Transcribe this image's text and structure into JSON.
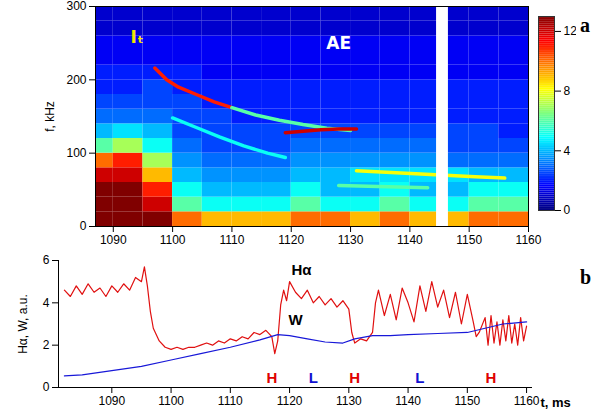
{
  "chart_data": [
    {
      "panel_label": "a",
      "type": "heatmap",
      "xlim": [
        1087,
        1160
      ],
      "xticks": [
        1090,
        1100,
        1110,
        1120,
        1130,
        1140,
        1150,
        1160
      ],
      "ylim": [
        0,
        300
      ],
      "yticks": [
        0,
        100,
        200,
        300
      ],
      "ylabel": "f, kHz",
      "t_edges": [
        1085,
        1090,
        1095,
        1100,
        1105,
        1110,
        1115,
        1120,
        1125,
        1130,
        1135,
        1140,
        1145,
        1150,
        1155,
        1160
      ],
      "f_edges": [
        0,
        20,
        40,
        60,
        80,
        100,
        120,
        140,
        160,
        180,
        200,
        220,
        240,
        260,
        280,
        300
      ],
      "power": [
        [
          13,
          13,
          13,
          10,
          9,
          9,
          9,
          10,
          10,
          9,
          10,
          9,
          9,
          10,
          10
        ],
        [
          13,
          13,
          12,
          6,
          5,
          5,
          5,
          6,
          5,
          5,
          6,
          5,
          5,
          6,
          6
        ],
        [
          13,
          13,
          11,
          5,
          4,
          4,
          4,
          5,
          4,
          4,
          5,
          4,
          4,
          5,
          5
        ],
        [
          12,
          12,
          9,
          4,
          3.5,
          3.5,
          3.5,
          4,
          4,
          4.5,
          4.5,
          4.5,
          4.5,
          4,
          4
        ],
        [
          10,
          11,
          7,
          3.5,
          3,
          3,
          3,
          3.5,
          3.5,
          3.5,
          3.5,
          3.5,
          3,
          3,
          3
        ],
        [
          6,
          7,
          5,
          3,
          2.5,
          2.5,
          2.5,
          3,
          3,
          3,
          3,
          3,
          2.5,
          2.5,
          2.5
        ],
        [
          4,
          4.5,
          4,
          2.5,
          2.5,
          2.5,
          2.5,
          2.5,
          2.5,
          2.5,
          2.5,
          2.5,
          2.5,
          2.5,
          2
        ],
        [
          3,
          3,
          3,
          2.5,
          2.5,
          2,
          2,
          2,
          2,
          2,
          2,
          2,
          2,
          2,
          2
        ],
        [
          2.5,
          2.5,
          2.5,
          2.5,
          2,
          2,
          2,
          2,
          2,
          2,
          2,
          2,
          2,
          2,
          2
        ],
        [
          2,
          2,
          2.5,
          2,
          2,
          2,
          2,
          2,
          2,
          2,
          2,
          2,
          2,
          2,
          2
        ],
        [
          2,
          2,
          2,
          2,
          1.5,
          1.5,
          1.5,
          1.5,
          1.5,
          1.5,
          1.5,
          1.5,
          1.5,
          1.5,
          1.5
        ],
        [
          1.5,
          1.5,
          1.5,
          1.5,
          1.5,
          1.5,
          1.5,
          1.5,
          1.5,
          1.5,
          1.5,
          1.5,
          1.5,
          1.5,
          1.5
        ],
        [
          1.5,
          1.5,
          1.5,
          1.5,
          1.5,
          1.5,
          1.5,
          1.5,
          1.5,
          1.5,
          1.5,
          1.5,
          1.5,
          1.5,
          1.5
        ],
        [
          1,
          1,
          1,
          1,
          1,
          1,
          1,
          1,
          1,
          1,
          1,
          1,
          1,
          1,
          1
        ],
        [
          1,
          1,
          1,
          1,
          1,
          1,
          1,
          1,
          1,
          1,
          1,
          1,
          1,
          1,
          1
        ]
      ],
      "gap": [
        1144.5,
        1146.5
      ],
      "modes": [
        {
          "t": [
            1097,
            1099,
            1101,
            1104,
            1107,
            1110
          ],
          "f": [
            216,
            200,
            190,
            180,
            170,
            162
          ],
          "power": 11
        },
        {
          "t": [
            1110,
            1114,
            1118,
            1122,
            1126,
            1130
          ],
          "f": [
            162,
            152,
            145,
            139,
            134,
            131
          ],
          "power": 6
        },
        {
          "t": [
            1119,
            1122,
            1125,
            1128,
            1131
          ],
          "f": [
            128,
            130,
            132,
            133,
            133
          ],
          "power": 12
        },
        {
          "t": [
            1100,
            1104,
            1108,
            1112,
            1116,
            1119
          ],
          "f": [
            148,
            135,
            122,
            110,
            100,
            94
          ],
          "power": 5
        },
        {
          "t": [
            1131,
            1136,
            1141,
            1146,
            1151,
            1156
          ],
          "f": [
            76,
            74,
            72,
            70,
            68,
            66
          ],
          "power": 8
        },
        {
          "t": [
            1128,
            1133,
            1138,
            1143
          ],
          "f": [
            56,
            55,
            54,
            53
          ],
          "power": 6
        }
      ],
      "colorbar": {
        "range": [
          0,
          13
        ],
        "ticks": [
          0,
          4,
          8,
          12
        ]
      },
      "annotations": [
        {
          "text": "Iₜ",
          "x": 1094,
          "y": 258,
          "color": "#f0e400"
        },
        {
          "text": "AE",
          "x": 1128,
          "y": 250,
          "color": "#ffffff"
        }
      ]
    },
    {
      "panel_label": "b",
      "type": "line",
      "xlim": [
        1081,
        1161
      ],
      "xticks": [
        1090,
        1100,
        1110,
        1120,
        1130,
        1140,
        1150,
        1160
      ],
      "ylim": [
        0,
        6
      ],
      "yticks": [
        0,
        2,
        4,
        6
      ],
      "ylabel": "Hα, W, a.u.",
      "xlabel": "t, ms",
      "series": [
        {
          "name": "Hα",
          "color": "#e01010",
          "label_at": [
            1122,
            5.55
          ],
          "x": [
            1082,
            1083,
            1084,
            1085,
            1086,
            1087,
            1088,
            1089,
            1090,
            1091,
            1092,
            1093,
            1094,
            1095,
            1095.5,
            1096,
            1096.5,
            1097,
            1098,
            1099,
            1100,
            1101,
            1102,
            1103,
            1104,
            1105,
            1106,
            1107,
            1108,
            1109,
            1110,
            1111,
            1112,
            1113,
            1114,
            1115,
            1116,
            1117,
            1117.5,
            1118,
            1118.5,
            1119,
            1119.5,
            1120,
            1121,
            1122,
            1123,
            1124,
            1125,
            1126,
            1127,
            1128,
            1129,
            1130,
            1130.5,
            1131,
            1132,
            1133,
            1134,
            1134.5,
            1135,
            1136,
            1137,
            1138,
            1139,
            1140,
            1141,
            1142,
            1143,
            1144,
            1145,
            1146,
            1147,
            1148,
            1149,
            1150,
            1151,
            1151.5,
            1152,
            1153,
            1153.5,
            1154,
            1154.5,
            1155,
            1155.5,
            1156,
            1156.5,
            1157,
            1157.5,
            1158,
            1158.5,
            1159,
            1159.5,
            1160
          ],
          "values": [
            4.6,
            4.3,
            4.8,
            4.4,
            4.9,
            4.5,
            4.7,
            4.3,
            4.8,
            4.5,
            4.9,
            4.6,
            5.2,
            5.0,
            5.7,
            4.8,
            3.6,
            2.8,
            2.2,
            1.9,
            1.8,
            1.9,
            1.8,
            1.9,
            1.9,
            2.0,
            2.1,
            2.0,
            2.2,
            2.1,
            2.3,
            2.2,
            2.4,
            2.3,
            2.6,
            2.5,
            2.7,
            2.4,
            1.6,
            2.2,
            3.9,
            4.6,
            4.1,
            5.0,
            4.5,
            4.2,
            4.6,
            4.0,
            4.3,
            3.9,
            4.2,
            3.8,
            4.1,
            3.7,
            2.6,
            2.1,
            2.3,
            2.2,
            2.6,
            4.0,
            4.6,
            3.4,
            4.4,
            3.2,
            4.7,
            4.0,
            3.1,
            4.8,
            3.6,
            5.0,
            3.8,
            4.6,
            3.3,
            4.5,
            3.0,
            4.4,
            3.1,
            2.4,
            2.6,
            3.3,
            2.0,
            3.4,
            2.1,
            3.1,
            2.0,
            3.2,
            2.2,
            3.4,
            2.1,
            3.0,
            2.0,
            3.3,
            2.2,
            2.9
          ]
        },
        {
          "name": "W",
          "color": "#1818d8",
          "label_at": [
            1121,
            3.2
          ],
          "x": [
            1082,
            1085,
            1090,
            1095,
            1100,
            1105,
            1110,
            1115,
            1118,
            1120,
            1123,
            1126,
            1129,
            1131,
            1134,
            1137,
            1140,
            1145,
            1150,
            1153,
            1156,
            1160
          ],
          "values": [
            0.55,
            0.6,
            0.8,
            1.0,
            1.3,
            1.6,
            1.9,
            2.25,
            2.5,
            2.45,
            2.3,
            2.15,
            2.1,
            2.3,
            2.45,
            2.45,
            2.5,
            2.55,
            2.6,
            2.8,
            3.0,
            3.1
          ]
        }
      ],
      "annotations": [
        {
          "text": "H",
          "x": 1117,
          "y": 0.45,
          "color": "#e00000"
        },
        {
          "text": "L",
          "x": 1124,
          "y": 0.45,
          "color": "#1010d0"
        },
        {
          "text": "H",
          "x": 1131,
          "y": 0.45,
          "color": "#e00000"
        },
        {
          "text": "L",
          "x": 1142,
          "y": 0.45,
          "color": "#1010d0"
        },
        {
          "text": "H",
          "x": 1154,
          "y": 0.45,
          "color": "#e00000"
        }
      ]
    }
  ]
}
